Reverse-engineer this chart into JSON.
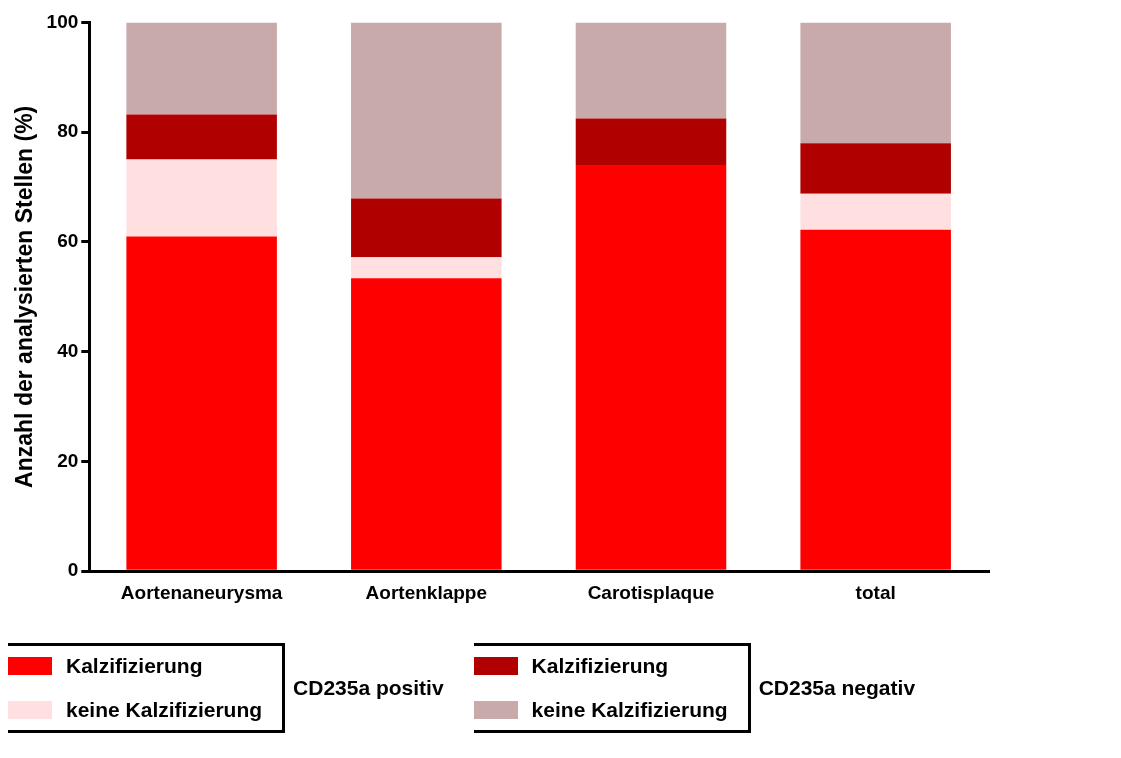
{
  "chart_data": {
    "type": "bar",
    "stacked": true,
    "ylabel": "Anzahl der analysierten Stellen (%)",
    "categories": [
      "Aortenaneurysma",
      "Aortenklappe",
      "Carotisplaque",
      "total"
    ],
    "series": [
      {
        "name": "Kalzifizierung",
        "color": "#ff0000",
        "values": [
          61,
          53.4,
          74,
          62.2
        ]
      },
      {
        "name": "keine Kalzifizierung",
        "color": "#ffdfdf",
        "values": [
          14,
          3.8,
          0,
          6.6
        ]
      },
      {
        "name": "Kalzifizierung",
        "color": "#b00000",
        "values": [
          8.2,
          10.7,
          8.5,
          9.2
        ]
      },
      {
        "name": "keine Kalzifizierung",
        "color": "#c9aaaa",
        "values": [
          16.8,
          32.1,
          17.5,
          22
        ]
      }
    ],
    "annotations": [
      "CD235a positiv",
      "CD235a negativ"
    ],
    "ylim": [
      0,
      100
    ],
    "yticks": [
      0,
      20,
      40,
      60,
      80,
      100
    ],
    "grid": false,
    "legend": "bottom"
  }
}
